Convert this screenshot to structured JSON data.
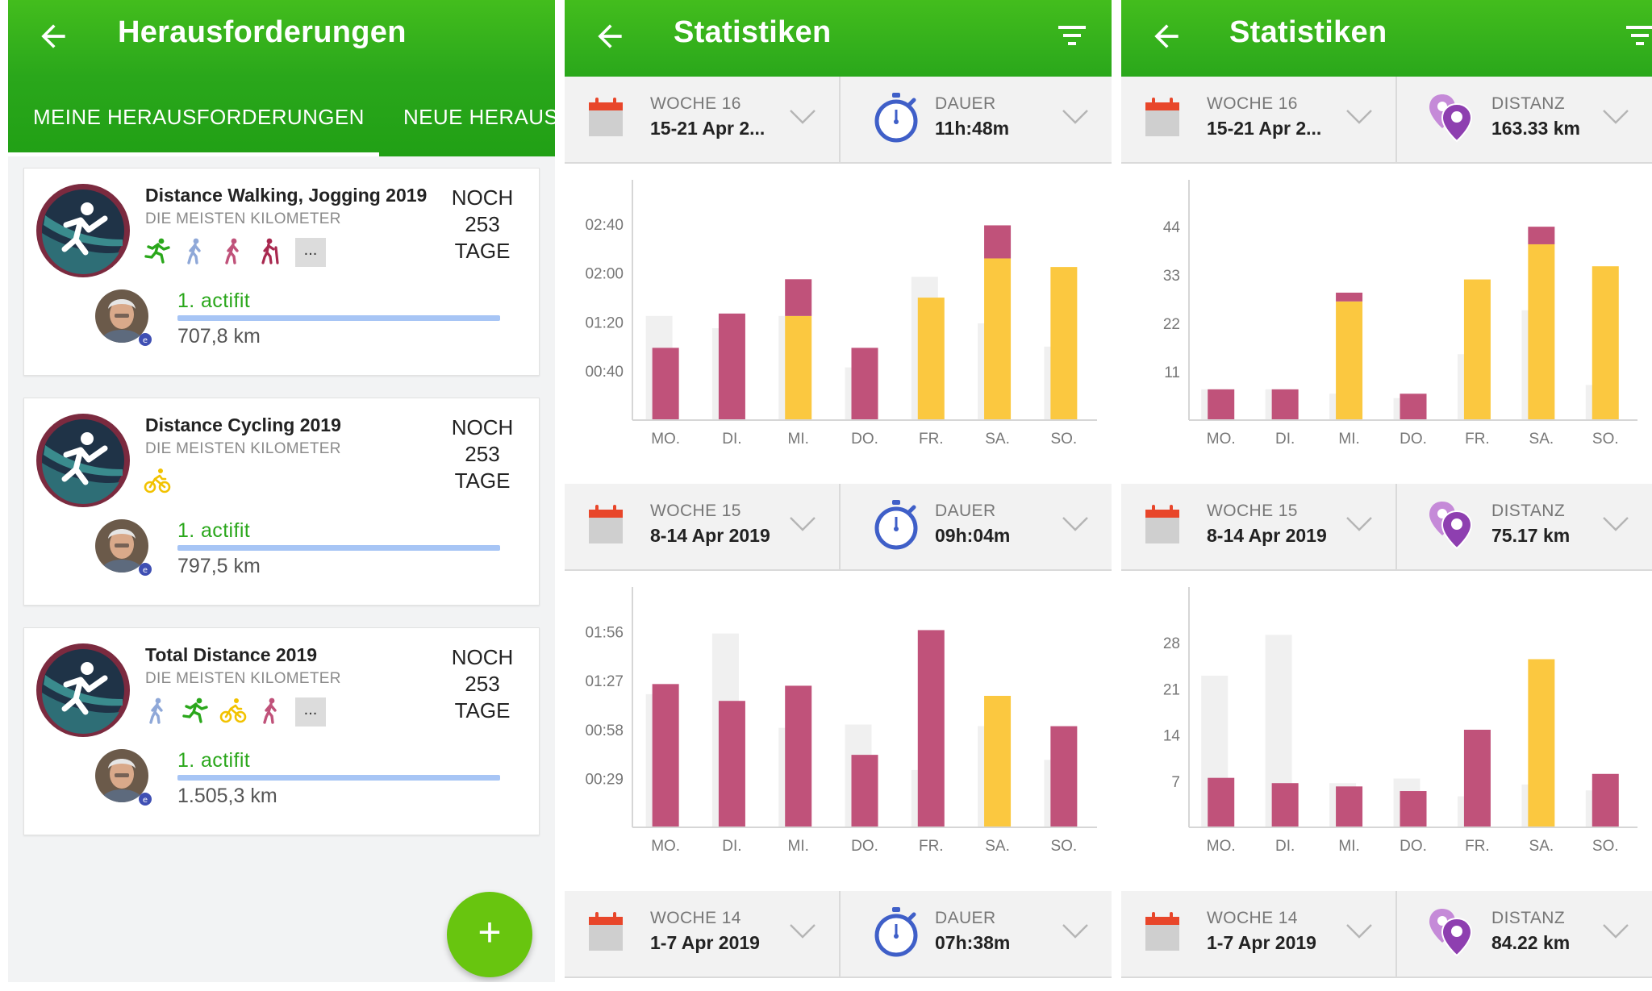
{
  "colors": {
    "green": "#2aa71b",
    "fab_green": "#68c50f",
    "bar_red": "#c0527a",
    "bar_yellow": "#fbc840",
    "bar_ghost": "#f0f0f0",
    "progress_blue": "#a7c5f5",
    "stopwatch_blue": "#3f5fc8",
    "pin_purple": "#8e3fb0",
    "calendar_red": "#e8462a"
  },
  "challenges_screen": {
    "title": "Herausforderungen",
    "tabs": [
      {
        "label": "MEINE HERAUSFORDERUNGEN",
        "active": true
      },
      {
        "label": "NEUE HERAUSFORDERUNGEN",
        "active": false
      }
    ],
    "cards": [
      {
        "title": "Distance Walking, Jogging 2019",
        "subtitle": "DIE MEISTEN KILOMETER",
        "icons": [
          "running-icon",
          "walking-icon",
          "walking-icon",
          "hiking-icon"
        ],
        "more_label": "...",
        "remaining": [
          "NOCH",
          "253",
          "TAGE"
        ],
        "rank": "1. actifit",
        "distance": "707,8 km"
      },
      {
        "title": "Distance Cycling 2019",
        "subtitle": "DIE MEISTEN KILOMETER",
        "icons": [
          "cycling-icon"
        ],
        "more_label": "",
        "remaining": [
          "NOCH",
          "253",
          "TAGE"
        ],
        "rank": "1. actifit",
        "distance": "797,5 km"
      },
      {
        "title": "Total Distance 2019",
        "subtitle": "DIE MEISTEN KILOMETER",
        "icons": [
          "walking-icon",
          "running-icon",
          "cycling-icon",
          "walking-icon"
        ],
        "more_label": "...",
        "remaining": [
          "NOCH",
          "253",
          "TAGE"
        ],
        "rank": "1. actifit",
        "distance": "1.505,3 km"
      }
    ],
    "fab_label": "+"
  },
  "duration_screen": {
    "title": "Statistiken",
    "metric_label": "DAUER",
    "weeks": [
      {
        "week_label": "WOCHE 16",
        "range": "15-21 Apr 2...",
        "total": "11h:48m",
        "chart_data": {
          "type": "bar",
          "unit": "minutes",
          "categories": [
            "MO.",
            "DI.",
            "MI.",
            "DO.",
            "FR.",
            "SA.",
            "SO."
          ],
          "ytick_labels": [
            "00:40",
            "01:20",
            "02:00",
            "02:40"
          ],
          "yticks": [
            40,
            80,
            120,
            160
          ],
          "ylim": [
            0,
            183
          ],
          "series": [
            {
              "color": "#c0527a",
              "values": [
                59,
                87,
                30,
                59,
                0,
                27,
                0
              ]
            },
            {
              "color": "#fbc840",
              "values": [
                0,
                0,
                85,
                0,
                100,
                132,
                125
              ]
            },
            {
              "color": "#f0f0f0",
              "values": [
                85,
                75,
                85,
                43,
                117,
                79,
                60
              ]
            }
          ]
        }
      },
      {
        "week_label": "WOCHE 15",
        "range": "8-14 Apr 2019",
        "total": "09h:04m",
        "chart_data": {
          "type": "bar",
          "unit": "minutes",
          "categories": [
            "MO.",
            "DI.",
            "MI.",
            "DO.",
            "FR.",
            "SA.",
            "SO."
          ],
          "ytick_labels": [
            "00:29",
            "00:58",
            "01:27",
            "01:56"
          ],
          "yticks": [
            29,
            58,
            87,
            116
          ],
          "ylim": [
            0,
            133
          ],
          "series": [
            {
              "color": "#c0527a",
              "values": [
                85,
                75,
                84,
                43,
                117,
                0,
                60
              ]
            },
            {
              "color": "#fbc840",
              "values": [
                0,
                0,
                0,
                0,
                0,
                78,
                0
              ]
            },
            {
              "color": "#f0f0f0",
              "values": [
                79,
                115,
                59,
                61,
                34,
                60,
                40
              ]
            }
          ]
        }
      },
      {
        "week_label": "WOCHE 14",
        "range": "1-7 Apr 2019",
        "total": "07h:38m"
      }
    ]
  },
  "distance_screen": {
    "title": "Statistiken",
    "metric_label": "DISTANZ",
    "weeks": [
      {
        "week_label": "WOCHE 16",
        "range": "15-21 Apr 2...",
        "total": "163.33 km",
        "chart_data": {
          "type": "bar",
          "unit": "km",
          "categories": [
            "MO.",
            "DI.",
            "MI.",
            "DO.",
            "FR.",
            "SA.",
            "SO."
          ],
          "ytick_labels": [
            "11",
            "22",
            "33",
            "44"
          ],
          "yticks": [
            11,
            22,
            33,
            44
          ],
          "ylim": [
            0,
            51
          ],
          "series": [
            {
              "color": "#c0527a",
              "values": [
                7,
                7,
                2,
                6,
                0,
                4,
                0
              ]
            },
            {
              "color": "#fbc840",
              "values": [
                0,
                0,
                27,
                0,
                32,
                40,
                35
              ]
            },
            {
              "color": "#f0f0f0",
              "values": [
                7,
                7,
                6,
                5,
                15,
                25,
                8
              ]
            }
          ]
        }
      },
      {
        "week_label": "WOCHE 15",
        "range": "8-14 Apr 2019",
        "total": "75.17 km",
        "chart_data": {
          "type": "bar",
          "unit": "km",
          "categories": [
            "MO.",
            "DI.",
            "MI.",
            "DO.",
            "FR.",
            "SA.",
            "SO."
          ],
          "ytick_labels": [
            "7",
            "14",
            "21",
            "28"
          ],
          "yticks": [
            7,
            14,
            21,
            28
          ],
          "ylim": [
            0,
            34
          ],
          "series": [
            {
              "color": "#c0527a",
              "values": [
                7.5,
                6.7,
                6.2,
                5.5,
                14.8,
                0,
                8.1
              ]
            },
            {
              "color": "#fbc840",
              "values": [
                0,
                0,
                0,
                0,
                0,
                25.5,
                0
              ]
            },
            {
              "color": "#f0f0f0",
              "values": [
                23,
                29.2,
                6.7,
                7.4,
                4.7,
                6.5,
                5.6
              ]
            }
          ]
        }
      },
      {
        "week_label": "WOCHE 14",
        "range": "1-7 Apr 2019",
        "total": "84.22 km"
      }
    ]
  }
}
